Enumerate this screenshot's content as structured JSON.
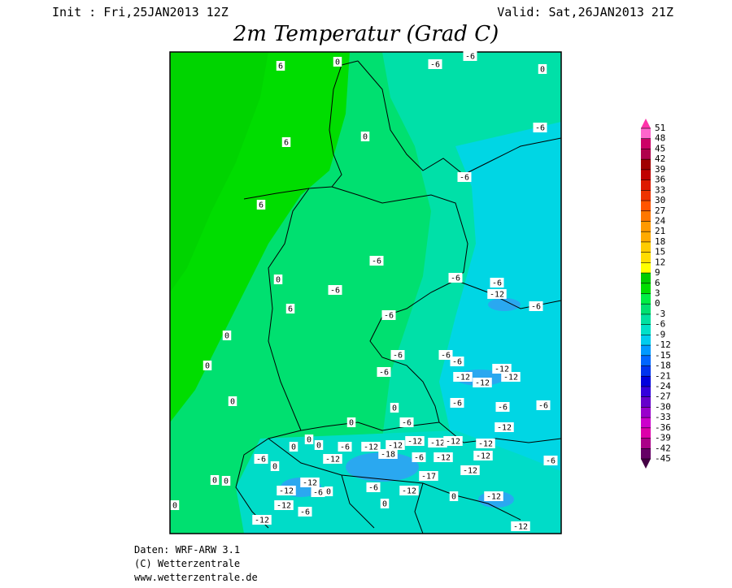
{
  "header": {
    "init": "Init : Fri,25JAN2013 12Z",
    "valid": "Valid: Sat,26JAN2013 21Z",
    "title": "2m Temperatur (Grad C)"
  },
  "map": {
    "labels": [
      "6",
      "0",
      "-6",
      "-6",
      "0",
      "6",
      "0",
      "-6",
      "-6",
      "6",
      "-6",
      "0",
      "-6",
      "-6",
      "-6",
      "-12",
      "6",
      "-6",
      "-6",
      "0",
      "-6",
      "-6",
      "-6",
      "0",
      "-6",
      "-12",
      "-12",
      "-12",
      "-12",
      "0",
      "0",
      "-6",
      "-6",
      "-6",
      "-6",
      "0",
      "-12",
      "-12",
      "-12",
      "-12",
      "-12",
      "-12",
      "-12",
      "-6",
      "0",
      "0",
      "0",
      "-6",
      "0",
      "-12",
      "-18",
      "-6",
      "-12",
      "-12",
      "-6",
      "-17",
      "-12",
      "0",
      "0",
      "-12",
      "-6",
      "-12",
      "-12",
      "0",
      "-12",
      "0",
      "-6",
      "-12",
      "-6",
      "0",
      "-12",
      "-12",
      "0"
    ]
  },
  "colorbar": {
    "ticks": [
      51,
      48,
      45,
      42,
      39,
      36,
      33,
      30,
      27,
      24,
      21,
      18,
      15,
      12,
      9,
      6,
      3,
      0,
      -3,
      -6,
      -9,
      -12,
      -15,
      -18,
      -21,
      -24,
      -27,
      -30,
      -33,
      -36,
      -39,
      -42,
      -45
    ],
    "colors": [
      "#ff66cc",
      "#cc0066",
      "#b0004c",
      "#a00000",
      "#c00000",
      "#dd1a00",
      "#ee3300",
      "#ff5500",
      "#ff7700",
      "#ff9900",
      "#ffaa00",
      "#ffcc00",
      "#ffdd00",
      "#ffff00",
      "#00cc00",
      "#00dd00",
      "#00ee44",
      "#00e070",
      "#00e0a0",
      "#00e0c8",
      "#00ccee",
      "#0099ff",
      "#0066ff",
      "#0033ee",
      "#0000dd",
      "#3300dd",
      "#6600cc",
      "#9900cc",
      "#cc00cc",
      "#dd00aa",
      "#aa0088",
      "#660066"
    ],
    "top_color": "#ff33aa",
    "bottom_color": "#440044"
  },
  "footer": {
    "lines": [
      "Daten: WRF-ARW 3.1",
      "(C) Wetterzentrale",
      "www.wetterzentrale.de"
    ]
  }
}
